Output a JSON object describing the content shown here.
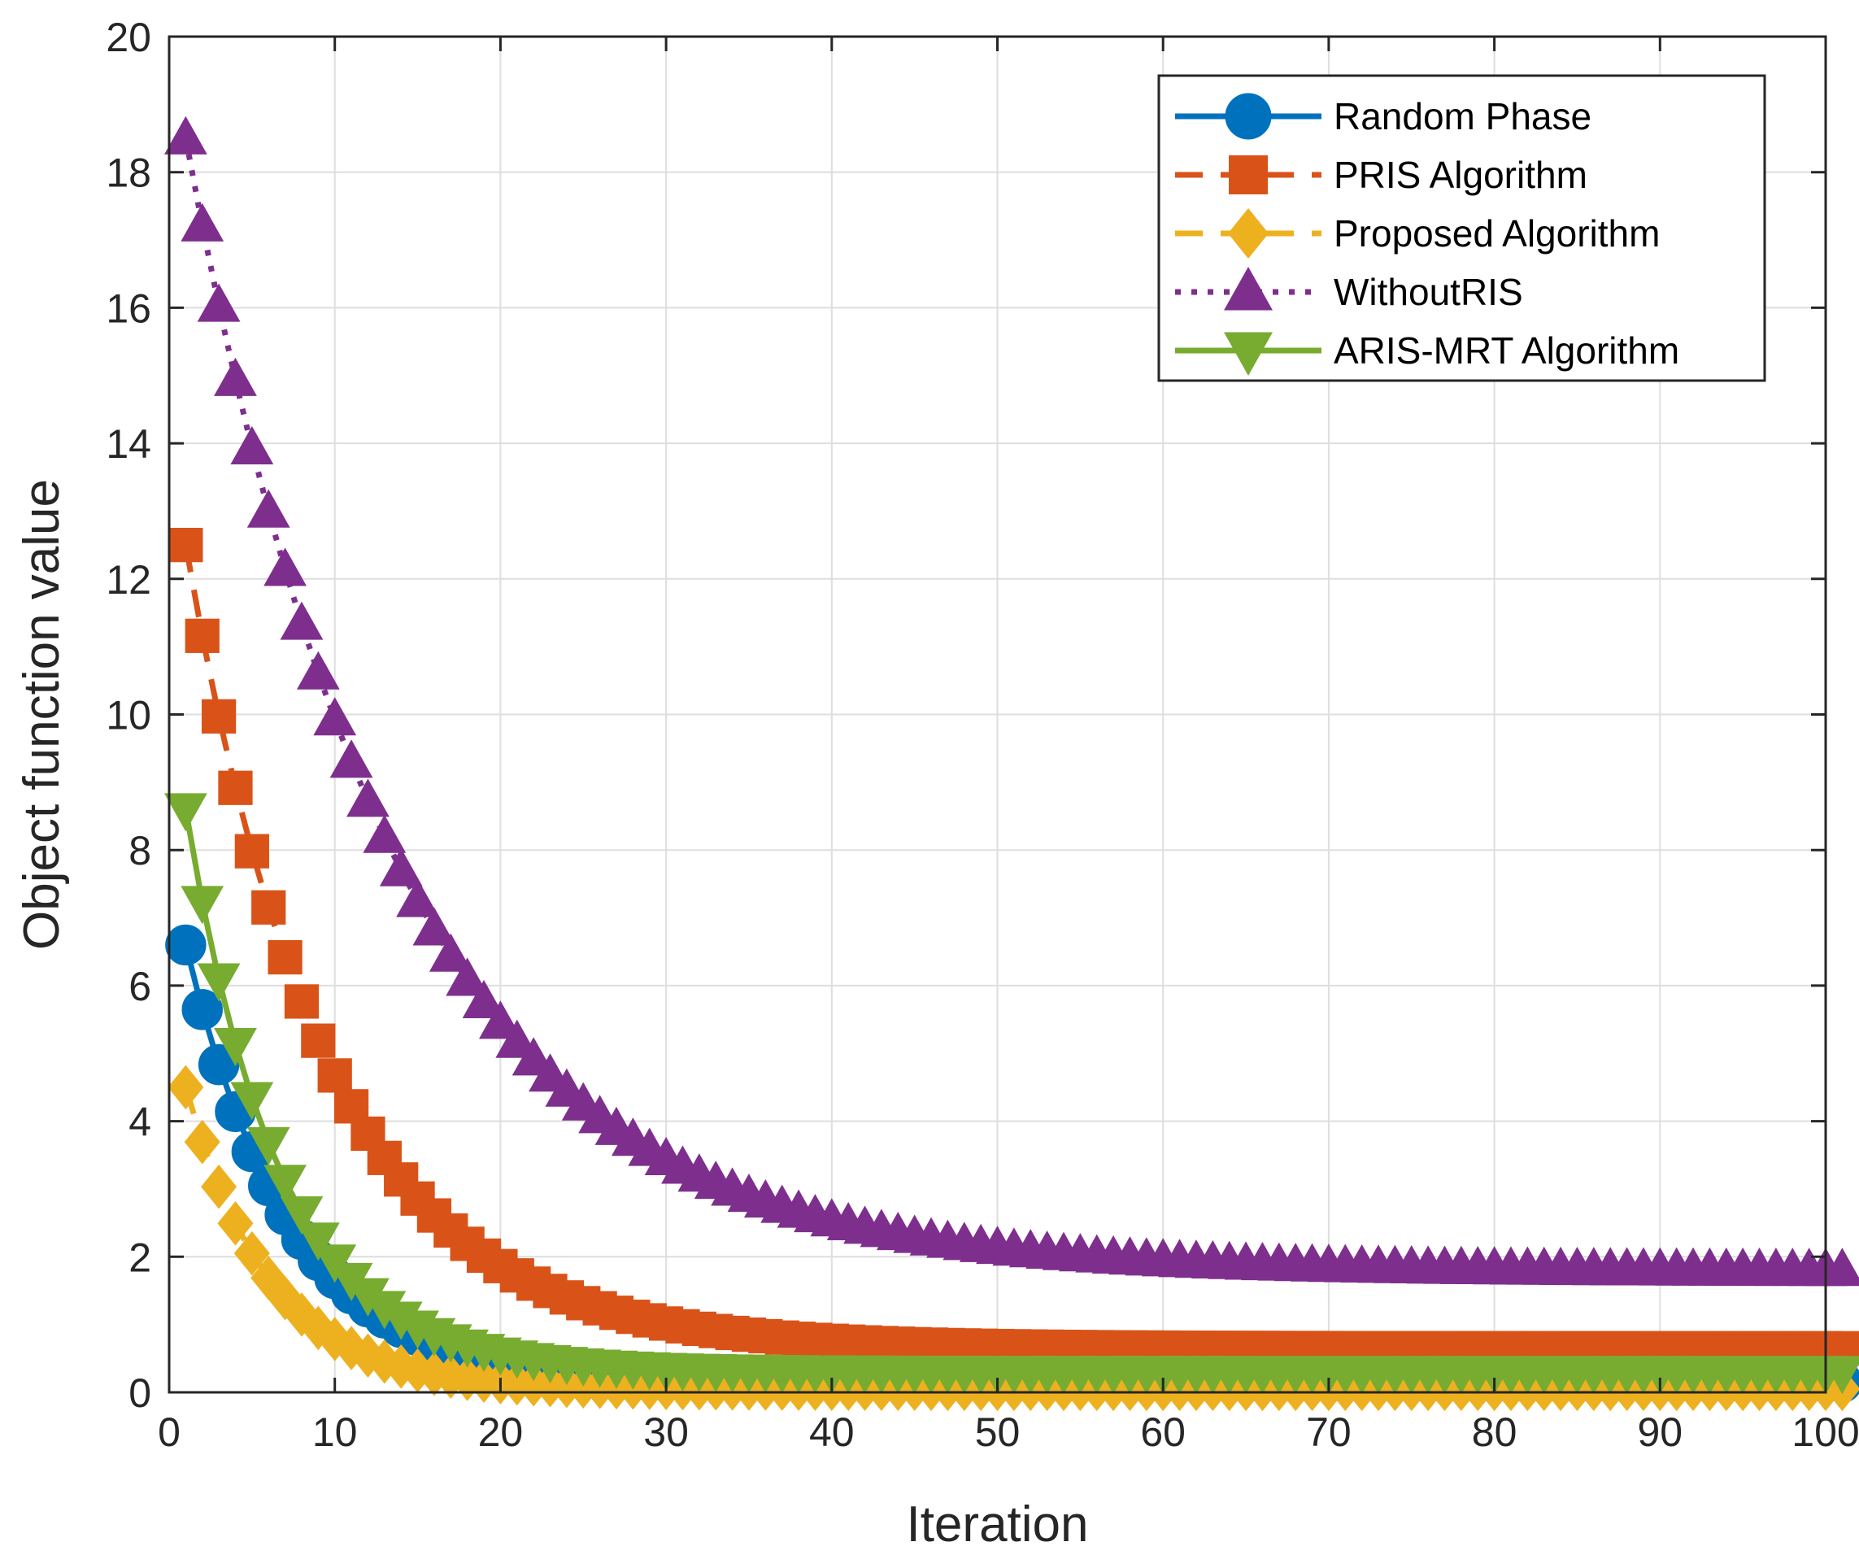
{
  "chart_data": {
    "type": "line",
    "xlabel": "Iteration",
    "ylabel": "Object function value",
    "xlim": [
      0,
      100
    ],
    "ylim": [
      0,
      20
    ],
    "xticks": [
      0,
      10,
      20,
      30,
      40,
      50,
      60,
      70,
      80,
      90,
      100
    ],
    "yticks": [
      0,
      2,
      4,
      6,
      8,
      10,
      12,
      14,
      16,
      18,
      20
    ],
    "grid": true,
    "legend_position": "top-right",
    "x_range": [
      1,
      101
    ],
    "series": [
      {
        "name": "Random Phase",
        "color": "#0072BD",
        "marker": "circle",
        "line_style": "solid",
        "approx": {
          "start": 6.6,
          "end": 0.15,
          "rate": 0.16
        }
      },
      {
        "name": "PRIS Algorithm",
        "color": "#D95319",
        "marker": "square",
        "line_style": "dashed",
        "approx": {
          "start": 12.5,
          "end": 0.65,
          "rate": 0.12
        }
      },
      {
        "name": "Proposed Algorithm",
        "color": "#EDB120",
        "marker": "diamond",
        "line_style": "dashed",
        "approx": {
          "start": 4.5,
          "end": 0.05,
          "rate": 0.2
        }
      },
      {
        "name": "WithoutRIS",
        "color": "#7E2F8E",
        "marker": "triangle-up",
        "line_style": "dotted",
        "approx": {
          "start": 18.5,
          "end": 1.8,
          "rate": 0.08
        }
      },
      {
        "name": "ARIS-MRT Algorithm",
        "color": "#77AC30",
        "marker": "triangle-down",
        "line_style": "solid",
        "approx": {
          "start": 8.6,
          "end": 0.3,
          "rate": 0.18
        }
      }
    ]
  }
}
